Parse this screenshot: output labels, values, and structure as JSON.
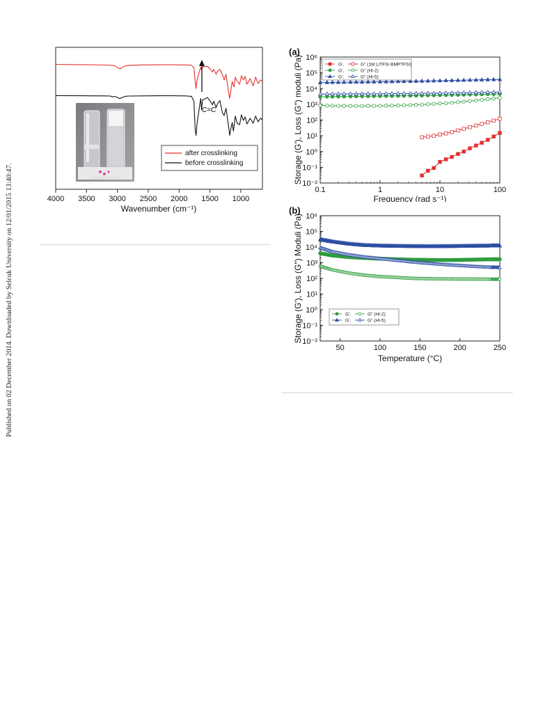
{
  "side_note": "Published on 02 December 2014. Downloaded by Selcuk University on 12/01/2015 13:40:47.",
  "ftir": {
    "chart_data": {
      "type": "line",
      "title": "",
      "xlabel": "Wavenumber (cm⁻¹)",
      "ylabel": "",
      "xlim": [
        4000,
        650
      ],
      "x_ticks": [
        4000,
        3500,
        3000,
        2500,
        2000,
        1500,
        1000
      ],
      "annotation": "C=C",
      "series": [
        {
          "name": "after crosslinking",
          "color": "#e8302f",
          "x": [
            4000,
            3600,
            3200,
            3050,
            2990,
            2960,
            2930,
            2890,
            2850,
            2800,
            2600,
            2300,
            2100,
            1900,
            1800,
            1760,
            1740,
            1725,
            1710,
            1650,
            1636,
            1620,
            1540,
            1480,
            1460,
            1440,
            1400,
            1380,
            1340,
            1290,
            1270,
            1240,
            1200,
            1180,
            1160,
            1140,
            1110,
            1090,
            1060,
            1020,
            990,
            960,
            930,
            900,
            850,
            800,
            760,
            720,
            680,
            650
          ],
          "y": [
            0.88,
            0.878,
            0.875,
            0.872,
            0.855,
            0.848,
            0.855,
            0.866,
            0.871,
            0.873,
            0.876,
            0.877,
            0.877,
            0.876,
            0.874,
            0.855,
            0.76,
            0.71,
            0.77,
            0.86,
            0.838,
            0.862,
            0.866,
            0.84,
            0.825,
            0.845,
            0.81,
            0.83,
            0.845,
            0.8,
            0.77,
            0.81,
            0.69,
            0.64,
            0.7,
            0.76,
            0.72,
            0.79,
            0.76,
            0.74,
            0.8,
            0.77,
            0.795,
            0.74,
            0.78,
            0.73,
            0.79,
            0.745,
            0.77,
            0.76
          ]
        },
        {
          "name": "before crosslinking",
          "color": "#111111",
          "x": [
            4000,
            3600,
            3200,
            3110,
            3080,
            3050,
            2990,
            2960,
            2930,
            2890,
            2850,
            2800,
            2600,
            2300,
            2100,
            1900,
            1800,
            1760,
            1740,
            1725,
            1710,
            1650,
            1637,
            1620,
            1540,
            1480,
            1460,
            1440,
            1400,
            1380,
            1340,
            1300,
            1270,
            1240,
            1200,
            1180,
            1160,
            1140,
            1120,
            1090,
            1060,
            1020,
            990,
            960,
            930,
            900,
            850,
            800,
            760,
            720,
            680,
            650
          ],
          "y": [
            0.66,
            0.659,
            0.658,
            0.657,
            0.65,
            0.655,
            0.645,
            0.638,
            0.645,
            0.652,
            0.656,
            0.657,
            0.658,
            0.659,
            0.659,
            0.658,
            0.655,
            0.62,
            0.42,
            0.38,
            0.46,
            0.64,
            0.56,
            0.63,
            0.646,
            0.61,
            0.595,
            0.62,
            0.575,
            0.6,
            0.625,
            0.54,
            0.52,
            0.57,
            0.45,
            0.38,
            0.43,
            0.47,
            0.41,
            0.515,
            0.465,
            0.455,
            0.525,
            0.485,
            0.51,
            0.46,
            0.5,
            0.465,
            0.515,
            0.475,
            0.5,
            0.49
          ]
        }
      ],
      "legend": {
        "placement": "lower-right",
        "entries": [
          "after crosslinking",
          "before crosslinking"
        ]
      },
      "inset": "photo of two vials (gel electrolyte before and after crosslinking)"
    }
  },
  "rheo_a": {
    "panel_label": "(a)",
    "chart_data": {
      "type": "scatter",
      "xlabel": "Frequency (rad s⁻¹)",
      "ylabel": "Storage (G'), Loss (G\") moduli (Pa)",
      "xscale": "log",
      "yscale": "log",
      "xlim": [
        0.1,
        100
      ],
      "ylim": [
        0.01,
        1000000
      ],
      "x_ticks": [
        "0.1",
        "1",
        "10",
        "100"
      ],
      "series": [
        {
          "name": "G'",
          "group": "1M LiTFSI BMPTFSI",
          "color": "#e03030",
          "filled": true,
          "marker": "square",
          "line": true,
          "x": [
            5,
            6.3,
            7.9,
            10,
            12.6,
            15.8,
            20,
            25,
            31.6,
            40,
            50,
            63,
            79,
            100
          ],
          "y": [
            0.03,
            0.06,
            0.09,
            0.22,
            0.32,
            0.45,
            0.7,
            1.0,
            1.6,
            2.4,
            3.6,
            5.5,
            9,
            15
          ]
        },
        {
          "name": "G\" (1M LiTFSI BMPTFSI)",
          "group": "1M LiTFSI BMPTFSI",
          "color": "#e03030",
          "filled": false,
          "marker": "square",
          "line": true,
          "x": [
            5,
            6.3,
            7.9,
            10,
            12.6,
            15.8,
            20,
            25,
            31.6,
            40,
            50,
            63,
            79,
            100
          ],
          "y": [
            8,
            9,
            10,
            12,
            14,
            17,
            22,
            28,
            35,
            45,
            57,
            72,
            92,
            120
          ]
        },
        {
          "name": "G'",
          "group": "HI-2",
          "color": "#2f9d3d",
          "filled": true,
          "marker": "circle",
          "line": true,
          "x": [
            0.1,
            0.13,
            0.16,
            0.2,
            0.25,
            0.32,
            0.4,
            0.5,
            0.63,
            0.79,
            1,
            1.26,
            1.58,
            2,
            2.5,
            3.2,
            4,
            5,
            6.3,
            7.9,
            10,
            12.6,
            15.8,
            20,
            25,
            31.6,
            40,
            50,
            63,
            79,
            100
          ],
          "y": [
            3000,
            3030,
            3060,
            3090,
            3120,
            3150,
            3180,
            3210,
            3240,
            3270,
            3300,
            3340,
            3380,
            3420,
            3460,
            3500,
            3550,
            3600,
            3650,
            3700,
            3760,
            3820,
            3880,
            3950,
            4020,
            4100,
            4180,
            4260,
            4350,
            4450,
            4550
          ]
        },
        {
          "name": "G\" (HI-2)",
          "group": "HI-2",
          "color": "#2f9d3d",
          "filled": false,
          "marker": "circle",
          "line": true,
          "x": [
            0.1,
            0.13,
            0.16,
            0.2,
            0.25,
            0.32,
            0.4,
            0.5,
            0.63,
            0.79,
            1,
            1.26,
            1.58,
            2,
            2.5,
            3.2,
            4,
            5,
            6.3,
            7.9,
            10,
            12.6,
            15.8,
            20,
            25,
            31.6,
            40,
            50,
            63,
            79,
            100
          ],
          "y": [
            850,
            830,
            815,
            800,
            790,
            785,
            780,
            780,
            785,
            790,
            800,
            815,
            830,
            850,
            875,
            900,
            930,
            970,
            1010,
            1060,
            1120,
            1190,
            1270,
            1360,
            1470,
            1600,
            1750,
            1920,
            2120,
            2350,
            2600
          ]
        },
        {
          "name": "G'",
          "group": "HI-5",
          "color": "#2e4ea3",
          "filled": true,
          "marker": "triangle",
          "line": true,
          "x": [
            0.1,
            0.13,
            0.16,
            0.2,
            0.25,
            0.32,
            0.4,
            0.5,
            0.63,
            0.79,
            1,
            1.26,
            1.58,
            2,
            2.5,
            3.2,
            4,
            5,
            6.3,
            7.9,
            10,
            12.6,
            15.8,
            20,
            25,
            31.6,
            40,
            50,
            63,
            79,
            100
          ],
          "y": [
            24000,
            24300,
            24600,
            24900,
            25200,
            25500,
            25800,
            26100,
            26400,
            26700,
            27000,
            27400,
            27800,
            28200,
            28600,
            29000,
            29500,
            30000,
            30500,
            31000,
            31600,
            32200,
            32800,
            33400,
            34000,
            34700,
            35400,
            36100,
            36800,
            37500,
            38200
          ]
        },
        {
          "name": "G\" (HI-5)",
          "group": "HI-5",
          "color": "#2e4ea3",
          "filled": false,
          "marker": "triangle",
          "line": true,
          "x": [
            0.1,
            0.13,
            0.16,
            0.2,
            0.25,
            0.32,
            0.4,
            0.5,
            0.63,
            0.79,
            1,
            1.26,
            1.58,
            2,
            2.5,
            3.2,
            4,
            5,
            6.3,
            7.9,
            10,
            12.6,
            15.8,
            20,
            25,
            31.6,
            40,
            50,
            63,
            79,
            100
          ],
          "y": [
            4500,
            4520,
            4540,
            4560,
            4580,
            4600,
            4620,
            4640,
            4660,
            4680,
            4700,
            4730,
            4760,
            4790,
            4820,
            4860,
            4900,
            4950,
            5000,
            5060,
            5120,
            5190,
            5260,
            5340,
            5420,
            5510,
            5600,
            5700,
            5800,
            5910,
            6020
          ]
        }
      ],
      "legend": {
        "placement": "top-left",
        "rows": [
          [
            "G',",
            "G\" (1M LiTFSI BMPTFSI)"
          ],
          [
            "G',",
            "G\" (HI-2)"
          ],
          [
            "G',",
            "G\" (HI-5)"
          ]
        ]
      }
    }
  },
  "rheo_b": {
    "panel_label": "(b)",
    "chart_data": {
      "type": "scatter",
      "xlabel": "Temperature (°C)",
      "ylabel": "Storage (G'), Loss (G\") Moduli (Pa)",
      "yscale": "log",
      "xlim": [
        25,
        250
      ],
      "ylim": [
        0.01,
        1000000
      ],
      "x_ticks": [
        "50",
        "100",
        "150",
        "200",
        "250"
      ],
      "series": [
        {
          "name": "G'",
          "group": "HI-2",
          "color": "#2f9d3d",
          "filled": true,
          "marker": "circle",
          "x": [
            25,
            40,
            60,
            80,
            100,
            120,
            140,
            160,
            180,
            200,
            220,
            240,
            250
          ],
          "y": [
            4000,
            2900,
            2300,
            2000,
            1800,
            1650,
            1550,
            1500,
            1480,
            1500,
            1580,
            1650,
            1650
          ]
        },
        {
          "name": "G\" (HI-2)",
          "group": "HI-2",
          "color": "#2f9d3d",
          "filled": false,
          "marker": "circle",
          "x": [
            25,
            40,
            60,
            80,
            100,
            120,
            140,
            160,
            180,
            200,
            220,
            240,
            250
          ],
          "y": [
            600,
            350,
            220,
            160,
            130,
            115,
            100,
            95,
            92,
            90,
            90,
            88,
            88
          ]
        },
        {
          "name": "G'",
          "group": "HI-5",
          "color": "#2e4ea3",
          "filled": true,
          "marker": "triangle",
          "x": [
            25,
            40,
            60,
            80,
            100,
            120,
            140,
            160,
            180,
            200,
            220,
            240,
            250
          ],
          "y": [
            30000,
            22000,
            16000,
            13000,
            12000,
            11500,
            11200,
            11000,
            11100,
            11400,
            11800,
            12000,
            12000
          ]
        },
        {
          "name": "G\" (HI-5)",
          "group": "HI-5",
          "color": "#2e4ea3",
          "filled": false,
          "marker": "triangle",
          "x": [
            25,
            40,
            60,
            80,
            100,
            120,
            140,
            160,
            180,
            200,
            220,
            240,
            250
          ],
          "y": [
            9000,
            5000,
            3200,
            2300,
            1800,
            1400,
            1100,
            900,
            750,
            650,
            560,
            500,
            480
          ]
        }
      ],
      "legend": {
        "placement": "lower-left",
        "rows": [
          [
            "G',",
            "G\" (HI-2)"
          ],
          [
            "G',",
            "G\" (HI-5)"
          ]
        ]
      }
    }
  }
}
